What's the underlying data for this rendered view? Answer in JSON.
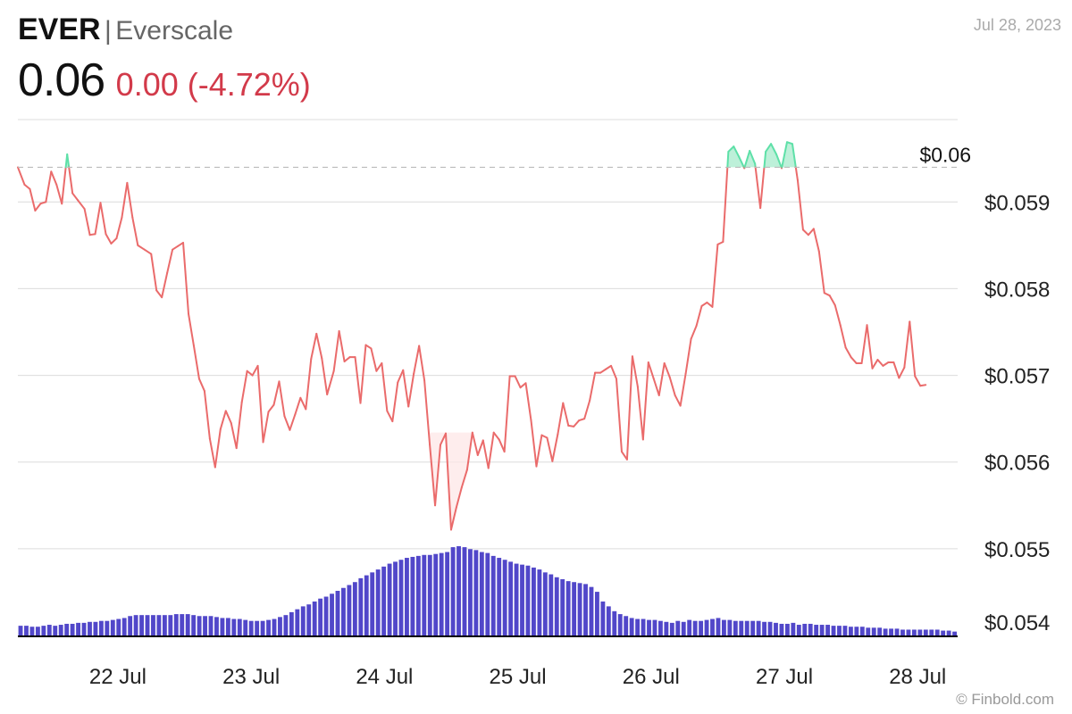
{
  "header": {
    "ticker": "EVER",
    "separator": "|",
    "name": "Everscale",
    "price": "0.06",
    "change": "0.00 (-4.72%)",
    "date": "Jul 28, 2023"
  },
  "footer": {
    "credit": "© Finbold.com"
  },
  "colors": {
    "line_down": "#ea6b6b",
    "line_up": "#5ee0a8",
    "fill_up": "#bdf0d9",
    "fill_down": "#fde6e6",
    "volume": "#5147c9",
    "grid": "#dcdcdc",
    "baseline": "#000000"
  },
  "chart_data": {
    "type": "line",
    "title": "",
    "xlabel": "",
    "ylabel": "",
    "x_ticks": [
      "22 Jul",
      "23 Jul",
      "24 Jul",
      "25 Jul",
      "26 Jul",
      "27 Jul",
      "28 Jul"
    ],
    "y_ticks": [
      "$0.054",
      "$0.055",
      "$0.056",
      "$0.057",
      "$0.058",
      "$0.059"
    ],
    "y_tick_values": [
      0.054,
      0.055,
      0.056,
      0.057,
      0.058,
      0.059
    ],
    "ylim": [
      0.054,
      0.05995
    ],
    "xlim": [
      -0.75,
      6.3
    ],
    "reference_line": {
      "value": 0.0594,
      "label": "$0.06"
    },
    "grid": true,
    "series": [
      {
        "values": [
          [
            -0.75,
            0.0594
          ],
          [
            -0.7,
            0.0592
          ],
          [
            -0.66,
            0.05915
          ],
          [
            -0.62,
            0.0589
          ],
          [
            -0.58,
            0.05898
          ],
          [
            -0.54,
            0.059
          ],
          [
            -0.5,
            0.05935
          ],
          [
            -0.46,
            0.0592
          ],
          [
            -0.42,
            0.05898
          ],
          [
            -0.38,
            0.05955
          ],
          [
            -0.34,
            0.0591
          ],
          [
            -0.3,
            0.05902
          ],
          [
            -0.25,
            0.05892
          ],
          [
            -0.21,
            0.05862
          ],
          [
            -0.17,
            0.05863
          ],
          [
            -0.13,
            0.05899
          ],
          [
            -0.09,
            0.05863
          ],
          [
            -0.05,
            0.05852
          ],
          [
            -0.01,
            0.05858
          ],
          [
            0.03,
            0.05882
          ],
          [
            0.07,
            0.05922
          ],
          [
            0.11,
            0.05882
          ],
          [
            0.15,
            0.0585
          ],
          [
            0.2,
            0.05845
          ],
          [
            0.25,
            0.0584
          ],
          [
            0.29,
            0.05798
          ],
          [
            0.33,
            0.0579
          ],
          [
            0.37,
            0.05818
          ],
          [
            0.41,
            0.05845
          ],
          [
            0.45,
            0.05849
          ],
          [
            0.49,
            0.05853
          ],
          [
            0.53,
            0.05771
          ],
          [
            0.57,
            0.05734
          ],
          [
            0.61,
            0.05696
          ],
          [
            0.65,
            0.05682
          ],
          [
            0.69,
            0.05627
          ],
          [
            0.73,
            0.05594
          ],
          [
            0.77,
            0.05638
          ],
          [
            0.81,
            0.05659
          ],
          [
            0.85,
            0.05645
          ],
          [
            0.89,
            0.05616
          ],
          [
            0.93,
            0.05669
          ],
          [
            0.97,
            0.05705
          ],
          [
            1.01,
            0.057
          ],
          [
            1.05,
            0.05711
          ],
          [
            1.09,
            0.05623
          ],
          [
            1.13,
            0.05658
          ],
          [
            1.17,
            0.05666
          ],
          [
            1.21,
            0.05693
          ],
          [
            1.25,
            0.05653
          ],
          [
            1.29,
            0.05637
          ],
          [
            1.33,
            0.05655
          ],
          [
            1.37,
            0.05674
          ],
          [
            1.41,
            0.05661
          ],
          [
            1.45,
            0.05719
          ],
          [
            1.49,
            0.05748
          ],
          [
            1.53,
            0.0572
          ],
          [
            1.57,
            0.05678
          ],
          [
            1.62,
            0.05705
          ],
          [
            1.66,
            0.05751
          ],
          [
            1.7,
            0.05716
          ],
          [
            1.74,
            0.05721
          ],
          [
            1.78,
            0.05721
          ],
          [
            1.82,
            0.05668
          ],
          [
            1.86,
            0.05735
          ],
          [
            1.9,
            0.05731
          ],
          [
            1.94,
            0.05705
          ],
          [
            1.98,
            0.05714
          ],
          [
            2.02,
            0.05659
          ],
          [
            2.06,
            0.05647
          ],
          [
            2.1,
            0.05692
          ],
          [
            2.14,
            0.05706
          ],
          [
            2.18,
            0.05664
          ],
          [
            2.22,
            0.05702
          ],
          [
            2.26,
            0.05734
          ],
          [
            2.3,
            0.05694
          ],
          [
            2.34,
            0.0562
          ],
          [
            2.38,
            0.0555
          ],
          [
            2.42,
            0.0562
          ],
          [
            2.46,
            0.05633
          ],
          [
            2.5,
            0.05522
          ],
          [
            2.54,
            0.05548
          ],
          [
            2.58,
            0.05571
          ],
          [
            2.62,
            0.05591
          ],
          [
            2.66,
            0.05634
          ],
          [
            2.7,
            0.05608
          ],
          [
            2.74,
            0.05625
          ],
          [
            2.78,
            0.05593
          ],
          [
            2.82,
            0.05634
          ],
          [
            2.86,
            0.05626
          ],
          [
            2.9,
            0.05612
          ],
          [
            2.94,
            0.05699
          ],
          [
            2.98,
            0.05699
          ],
          [
            3.02,
            0.05686
          ],
          [
            3.06,
            0.05691
          ],
          [
            3.1,
            0.05648
          ],
          [
            3.14,
            0.05595
          ],
          [
            3.18,
            0.05631
          ],
          [
            3.22,
            0.05628
          ],
          [
            3.26,
            0.05601
          ],
          [
            3.3,
            0.05632
          ],
          [
            3.34,
            0.05668
          ],
          [
            3.38,
            0.05642
          ],
          [
            3.42,
            0.05641
          ],
          [
            3.46,
            0.05648
          ],
          [
            3.5,
            0.0565
          ],
          [
            3.54,
            0.05671
          ],
          [
            3.58,
            0.05703
          ],
          [
            3.62,
            0.05703
          ],
          [
            3.66,
            0.05707
          ],
          [
            3.7,
            0.05711
          ],
          [
            3.74,
            0.05696
          ],
          [
            3.78,
            0.05612
          ],
          [
            3.82,
            0.05603
          ],
          [
            3.86,
            0.05722
          ],
          [
            3.9,
            0.05687
          ],
          [
            3.94,
            0.05626
          ],
          [
            3.98,
            0.05715
          ],
          [
            4.02,
            0.05696
          ],
          [
            4.06,
            0.05677
          ],
          [
            4.1,
            0.05714
          ],
          [
            4.14,
            0.05698
          ],
          [
            4.18,
            0.05677
          ],
          [
            4.22,
            0.05665
          ],
          [
            4.26,
            0.05702
          ],
          [
            4.3,
            0.05742
          ],
          [
            4.34,
            0.05757
          ],
          [
            4.38,
            0.0578
          ],
          [
            4.42,
            0.05784
          ],
          [
            4.46,
            0.05779
          ],
          [
            4.5,
            0.05851
          ],
          [
            4.54,
            0.05854
          ],
          [
            4.58,
            0.05958
          ],
          [
            4.62,
            0.05964
          ],
          [
            4.66,
            0.05952
          ],
          [
            4.7,
            0.05939
          ],
          [
            4.74,
            0.05959
          ],
          [
            4.78,
            0.05944
          ],
          [
            4.82,
            0.05893
          ],
          [
            4.86,
            0.05958
          ],
          [
            4.9,
            0.05967
          ],
          [
            4.94,
            0.05955
          ],
          [
            4.98,
            0.05939
          ],
          [
            5.02,
            0.05969
          ],
          [
            5.06,
            0.05967
          ],
          [
            5.1,
            0.05925
          ],
          [
            5.14,
            0.05868
          ],
          [
            5.18,
            0.05862
          ],
          [
            5.22,
            0.05869
          ],
          [
            5.26,
            0.05843
          ],
          [
            5.3,
            0.05795
          ],
          [
            5.34,
            0.05792
          ],
          [
            5.38,
            0.05781
          ],
          [
            5.42,
            0.05758
          ],
          [
            5.46,
            0.05732
          ],
          [
            5.5,
            0.05721
          ],
          [
            5.54,
            0.05714
          ],
          [
            5.58,
            0.05714
          ],
          [
            5.62,
            0.05758
          ],
          [
            5.66,
            0.05708
          ],
          [
            5.7,
            0.05718
          ],
          [
            5.74,
            0.05711
          ],
          [
            5.78,
            0.05715
          ],
          [
            5.82,
            0.05715
          ],
          [
            5.86,
            0.05697
          ],
          [
            5.9,
            0.05709
          ],
          [
            5.94,
            0.05762
          ],
          [
            5.98,
            0.05699
          ],
          [
            6.02,
            0.05688
          ],
          [
            6.06,
            0.05689
          ]
        ]
      }
    ],
    "volume": [
      10,
      10,
      9,
      9,
      10,
      11,
      10,
      11,
      12,
      12,
      13,
      13,
      14,
      14,
      15,
      15,
      16,
      17,
      18,
      20,
      21,
      21,
      21,
      21,
      21,
      21,
      21,
      22,
      22,
      22,
      21,
      20,
      20,
      20,
      19,
      18,
      18,
      17,
      17,
      16,
      15,
      15,
      15,
      16,
      17,
      19,
      21,
      24,
      27,
      30,
      32,
      35,
      38,
      40,
      43,
      46,
      49,
      52,
      55,
      59,
      62,
      65,
      68,
      71,
      74,
      76,
      78,
      80,
      81,
      82,
      83,
      83,
      84,
      85,
      86,
      91,
      92,
      91,
      89,
      88,
      86,
      85,
      82,
      80,
      78,
      76,
      74,
      73,
      72,
      70,
      68,
      65,
      63,
      60,
      58,
      56,
      55,
      54,
      53,
      50,
      45,
      35,
      30,
      25,
      22,
      20,
      18,
      17,
      17,
      16,
      16,
      15,
      14,
      13,
      15,
      14,
      16,
      15,
      15,
      16,
      17,
      18,
      16,
      16,
      15,
      15,
      15,
      15,
      15,
      14,
      14,
      13,
      12,
      12,
      13,
      11,
      12,
      12,
      11,
      11,
      11,
      10,
      10,
      10,
      9,
      9,
      9,
      8,
      8,
      8,
      7,
      7,
      7,
      6,
      6,
      6,
      6,
      6,
      6,
      6,
      5,
      5,
      4
    ]
  }
}
